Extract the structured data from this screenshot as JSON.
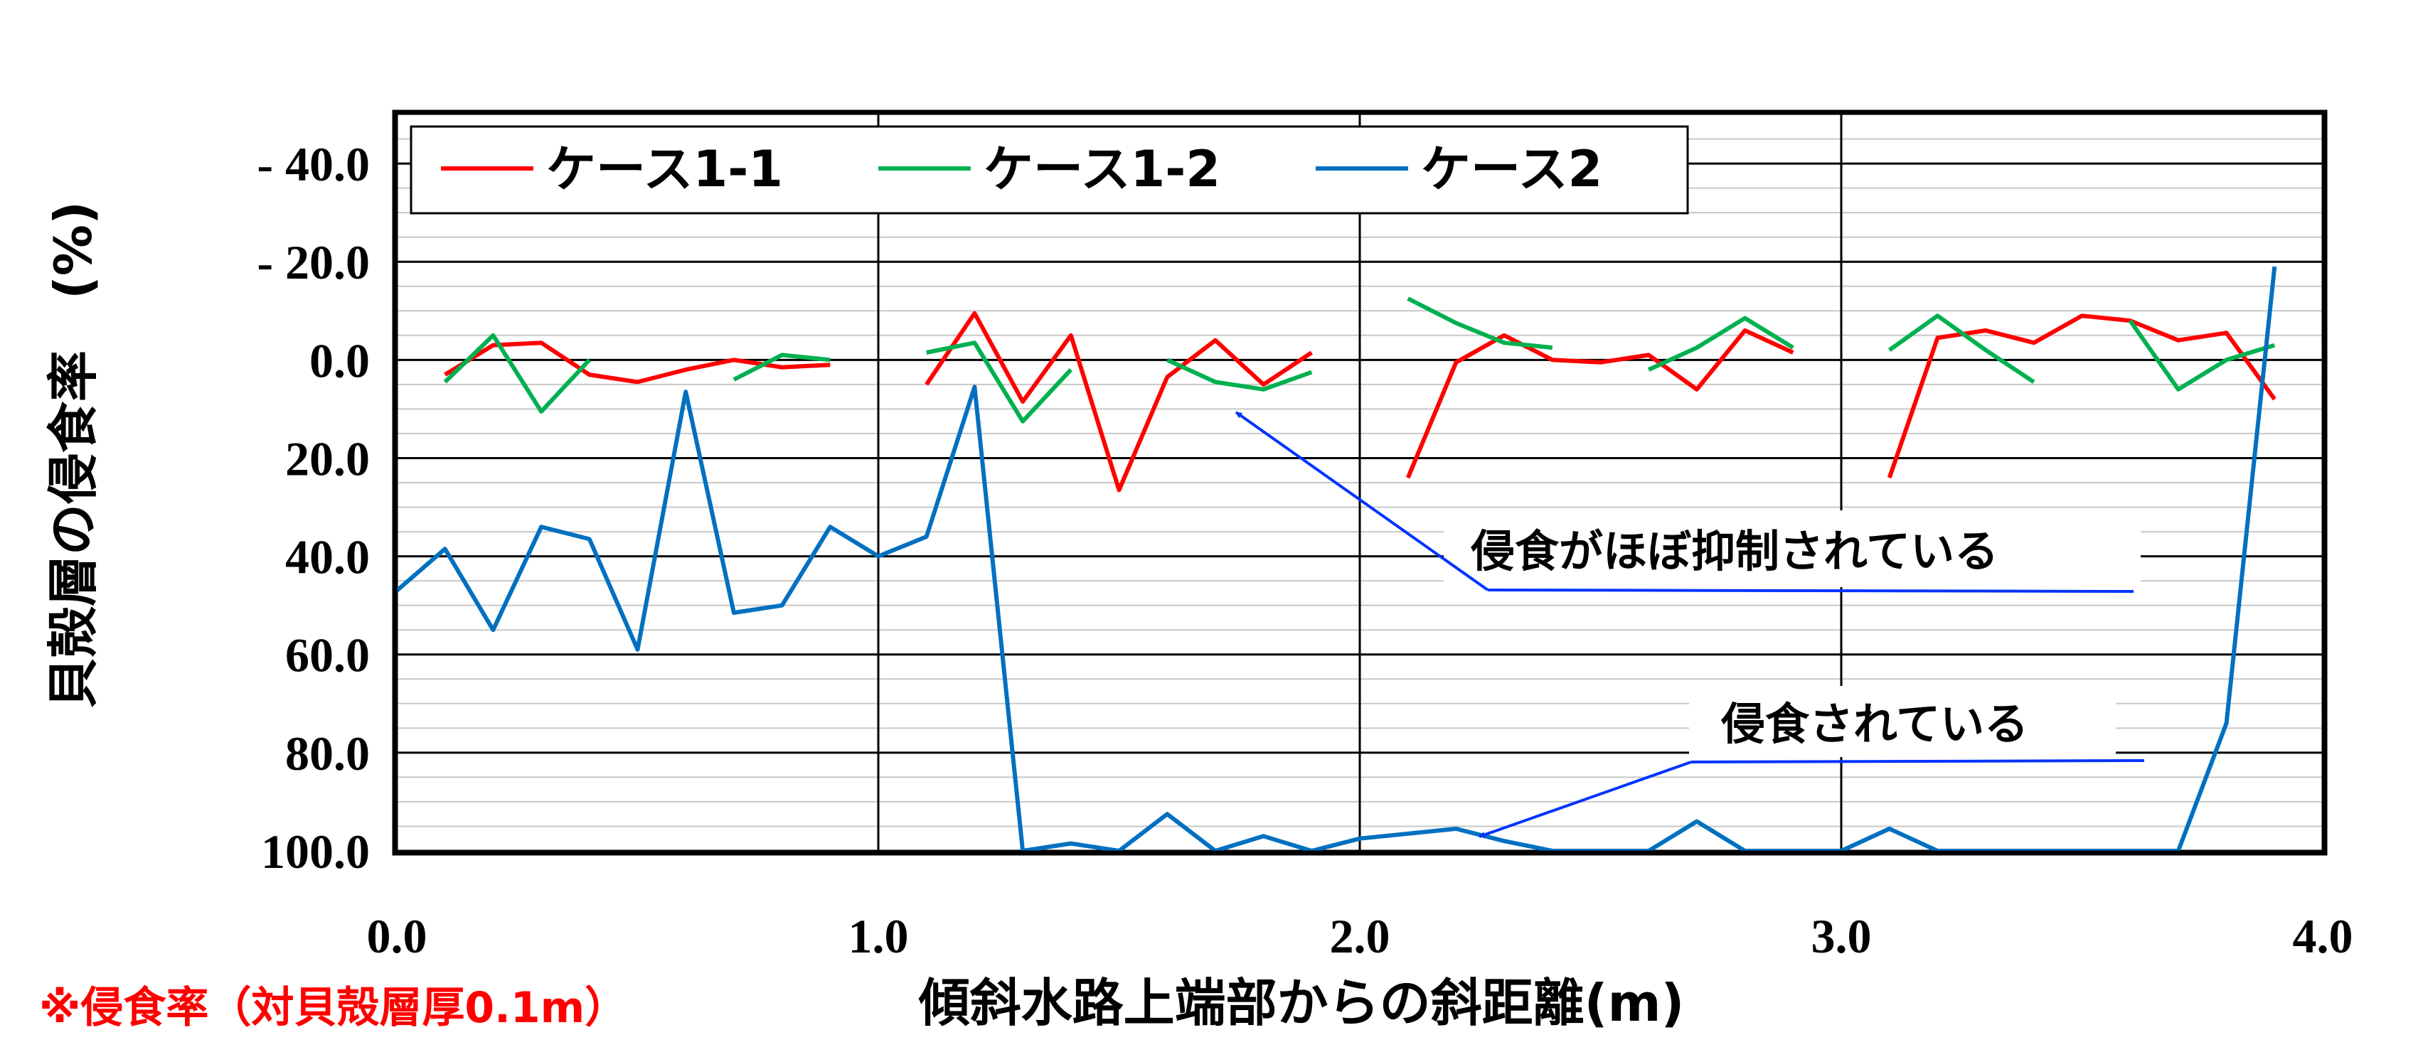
{
  "chart_data": {
    "type": "line",
    "ylabel": "貝殻層の侵食率　(%)",
    "xlabel": "傾斜水路上端部からの斜距離(m)",
    "xlim": [
      0,
      4
    ],
    "ylim": [
      -50,
      100
    ],
    "y_inverted": true,
    "x_ticks": [
      "0.0",
      "1.0",
      "2.0",
      "3.0",
      "4.0"
    ],
    "y_ticks": [
      {
        "value": -40,
        "label": "- 40.0"
      },
      {
        "value": -20,
        "label": "- 20.0"
      },
      {
        "value": 0,
        "label": "0.0"
      },
      {
        "value": 20,
        "label": "20.0"
      },
      {
        "value": 40,
        "label": "40.0"
      },
      {
        "value": 60,
        "label": "60.0"
      },
      {
        "value": 80,
        "label": "80.0"
      },
      {
        "value": 100,
        "label": "100.0"
      }
    ],
    "grid": true,
    "legend_position": "top-left",
    "series": [
      {
        "name": "ケース1-1",
        "color": "#ff0000",
        "segments": [
          [
            [
              0.1,
              3
            ],
            [
              0.2,
              -3
            ],
            [
              0.3,
              -3.5
            ],
            [
              0.4,
              3
            ],
            [
              0.5,
              4.5
            ],
            [
              0.6,
              2
            ],
            [
              0.7,
              0
            ],
            [
              0.8,
              1.5
            ],
            [
              0.9,
              1
            ]
          ],
          [
            [
              1.1,
              5
            ],
            [
              1.2,
              -9.5
            ],
            [
              1.3,
              8.5
            ],
            [
              1.4,
              -5
            ],
            [
              1.5,
              26.5
            ],
            [
              1.6,
              3.5
            ],
            [
              1.7,
              -4
            ],
            [
              1.8,
              5
            ],
            [
              1.9,
              -1.5
            ]
          ],
          [
            [
              2.1,
              24
            ],
            [
              2.2,
              0.5
            ],
            [
              2.3,
              -5
            ],
            [
              2.4,
              0
            ],
            [
              2.5,
              0.5
            ],
            [
              2.6,
              -1
            ],
            [
              2.7,
              6
            ],
            [
              2.8,
              -6
            ],
            [
              2.9,
              -1.5
            ]
          ],
          [
            [
              3.1,
              24
            ],
            [
              3.2,
              -4.5
            ],
            [
              3.3,
              -6
            ],
            [
              3.4,
              -3.5
            ],
            [
              3.5,
              -9
            ],
            [
              3.6,
              -8
            ],
            [
              3.7,
              -4
            ],
            [
              3.8,
              -5.5
            ],
            [
              3.9,
              8
            ]
          ]
        ]
      },
      {
        "name": "ケース1-2",
        "color": "#00b050",
        "segments": [
          [
            [
              0.1,
              4.5
            ],
            [
              0.2,
              -5
            ],
            [
              0.3,
              10.5
            ],
            [
              0.4,
              0
            ]
          ],
          [
            [
              0.7,
              4
            ],
            [
              0.8,
              -1
            ],
            [
              0.9,
              0
            ]
          ],
          [
            [
              1.1,
              -1.5
            ],
            [
              1.2,
              -3.5
            ],
            [
              1.3,
              12.5
            ],
            [
              1.4,
              2
            ]
          ],
          [
            [
              1.6,
              0
            ],
            [
              1.7,
              4.5
            ],
            [
              1.8,
              6
            ],
            [
              1.9,
              2.5
            ]
          ],
          [
            [
              2.1,
              -12.5
            ],
            [
              2.2,
              -7.5
            ],
            [
              2.3,
              -3.5
            ],
            [
              2.4,
              -2.5
            ]
          ],
          [
            [
              2.6,
              2
            ],
            [
              2.7,
              -2.5
            ],
            [
              2.8,
              -8.5
            ],
            [
              2.9,
              -2.5
            ]
          ],
          [
            [
              3.1,
              -2
            ],
            [
              3.2,
              -9
            ],
            [
              3.3,
              -2
            ],
            [
              3.4,
              4.5
            ]
          ],
          [
            [
              3.6,
              -8
            ],
            [
              3.7,
              6
            ],
            [
              3.8,
              0
            ],
            [
              3.9,
              -3
            ]
          ]
        ]
      },
      {
        "name": "ケース2",
        "color": "#0070c0",
        "segments": [
          [
            [
              0.0,
              47
            ],
            [
              0.1,
              38.5
            ],
            [
              0.2,
              55
            ],
            [
              0.3,
              34
            ],
            [
              0.4,
              36.5
            ],
            [
              0.5,
              59
            ],
            [
              0.6,
              6.5
            ],
            [
              0.7,
              51.5
            ],
            [
              0.8,
              50
            ],
            [
              0.9,
              34
            ],
            [
              1.0,
              40
            ],
            [
              1.1,
              36
            ],
            [
              1.2,
              5.5
            ],
            [
              1.3,
              100
            ],
            [
              1.4,
              98.5
            ],
            [
              1.5,
              100
            ],
            [
              1.6,
              92.5
            ],
            [
              1.7,
              100
            ],
            [
              1.8,
              97
            ],
            [
              1.9,
              100
            ],
            [
              2.0,
              97.5
            ],
            [
              2.1,
              96.5
            ],
            [
              2.2,
              95.5
            ],
            [
              2.3,
              98
            ],
            [
              2.4,
              100
            ],
            [
              2.5,
              100
            ],
            [
              2.6,
              100
            ],
            [
              2.7,
              94
            ],
            [
              2.8,
              100
            ],
            [
              2.9,
              100
            ],
            [
              3.0,
              100
            ],
            [
              3.1,
              95.5
            ],
            [
              3.2,
              100
            ],
            [
              3.3,
              100
            ],
            [
              3.4,
              100
            ],
            [
              3.5,
              100
            ],
            [
              3.6,
              100
            ],
            [
              3.7,
              100
            ],
            [
              3.8,
              74
            ],
            [
              3.9,
              -19
            ]
          ]
        ]
      }
    ],
    "annotations": [
      {
        "text": "侵食がほぼ抑制されている",
        "target": [
          1.75,
          11
        ]
      },
      {
        "text": "侵食されている",
        "target": [
          2.25,
          95.5
        ]
      }
    ]
  },
  "footnote": "※侵食率（対貝殻層厚0.1m）"
}
